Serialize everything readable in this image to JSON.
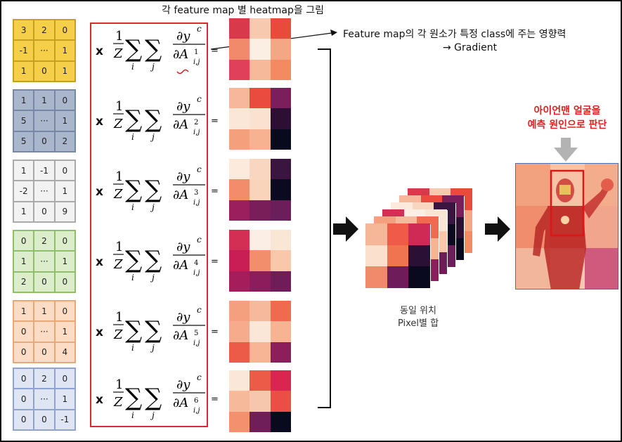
{
  "title": "각 feature map 별 heatmap을 그림",
  "note_line1": "Feature map의 각 원소가 특정 class에 주는 영향력",
  "note_line2": "→ Gradient",
  "times_sign": "x",
  "equals_sign": "=",
  "sum_caption_line1": "동일 위치",
  "sum_caption_line2": "Pixel별 합",
  "result_line1": "아이언맨 얼굴을",
  "result_line2": "예측 원인으로 판단",
  "formula": {
    "prefix_num": "1",
    "prefix_den": "Z",
    "sum_i": "i",
    "sum_j": "j",
    "numerator": "∂y",
    "numerator_sup": "c",
    "denominator": "∂A",
    "den_sub": "i,j"
  },
  "feature_maps": [
    {
      "k": "1",
      "fill": "#f5cf4a",
      "border": "#c8a020",
      "cells": [
        "3",
        "2",
        "0",
        "-1",
        "···",
        "1",
        "1",
        "0",
        "1"
      ]
    },
    {
      "k": "2",
      "fill": "#a9b6cc",
      "border": "#7788a6",
      "cells": [
        "1",
        "1",
        "0",
        "5",
        "···",
        "1",
        "5",
        "0",
        "2"
      ]
    },
    {
      "k": "3",
      "fill": "#f2f2f2",
      "border": "#aaaaaa",
      "cells": [
        "1",
        "-1",
        "0",
        "-2",
        "···",
        "1",
        "1",
        "0",
        "9"
      ]
    },
    {
      "k": "4",
      "fill": "#dcedcc",
      "border": "#8fbf6a",
      "cells": [
        "0",
        "2",
        "0",
        "1",
        "···",
        "1",
        "2",
        "0",
        "0"
      ]
    },
    {
      "k": "5",
      "fill": "#fcdcc4",
      "border": "#e8a878",
      "cells": [
        "1",
        "1",
        "0",
        "0",
        "···",
        "1",
        "0",
        "0",
        "4"
      ]
    },
    {
      "k": "6",
      "fill": "#dfe5f3",
      "border": "#8fa3d3",
      "cells": [
        "0",
        "2",
        "0",
        "0",
        "···",
        "1",
        "0",
        "0",
        "-1"
      ]
    }
  ],
  "heatmaps": [
    [
      "#d93a4b",
      "#f7c9ae",
      "#e84a3c",
      "#f08a6a",
      "#fbeee3",
      "#f4a784",
      "#e0405a",
      "#f6b99a",
      "#f38a62"
    ],
    [
      "#f6b79a",
      "#e94c3e",
      "#7a1f5c",
      "#fbe7d8",
      "#fbe2d0",
      "#2c0f33",
      "#f5a07c",
      "#f6b291",
      "#0a0a1e"
    ],
    [
      "#fcebdd",
      "#f8d6c0",
      "#3a1540",
      "#f28c6a",
      "#f9d4bb",
      "#0c0a20",
      "#9b1f5c",
      "#7a1e5a",
      "#6a1e5a"
    ],
    [
      "#d32f55",
      "#fbefe5",
      "#fae6d5",
      "#c81e55",
      "#f28e6c",
      "#f9c8ab",
      "#a51d5a",
      "#8c1d5c",
      "#6e1d58"
    ],
    [
      "#f49f7e",
      "#f7b99b",
      "#ef6a4e",
      "#f6ac8c",
      "#fbe7d8",
      "#f7b492",
      "#ec5a48",
      "#f7b596",
      "#8c1e5c"
    ],
    [
      "#fbe7d8",
      "#ec5a48",
      "#d9254f",
      "#f6b99a",
      "#f7c7ad",
      "#ea4e44",
      "#f3906e",
      "#701e5a",
      "#0a0a1e"
    ]
  ],
  "stack_front": [
    "#f6b698",
    "#f05a48",
    "#ce2a55",
    "#fbe1cd",
    "#f0744f",
    "#2a1035",
    "#f08a6a",
    "#6e1d5a",
    "#0a0a1e"
  ]
}
